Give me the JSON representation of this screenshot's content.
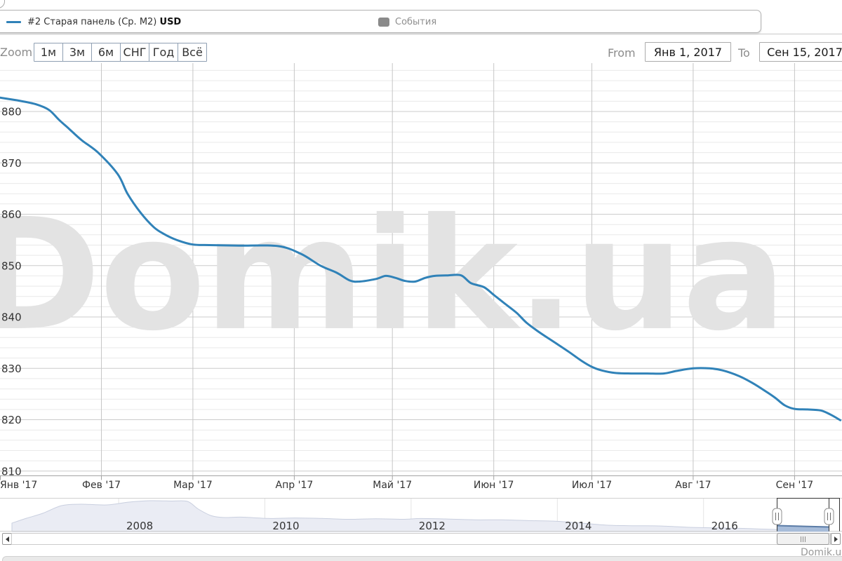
{
  "header": {
    "legend_series_label": "#2 Старая панель (Ср. М2)",
    "legend_series_suffix": "USD",
    "legend_events_label": "События"
  },
  "toolbar": {
    "zoom_label": "Zoom",
    "buttons": [
      "1м",
      "3м",
      "6м",
      "СНГ",
      "Год",
      "Всё"
    ],
    "from_label": "From",
    "from_value": "Янв 1, 2017",
    "to_label": "To",
    "to_value": "Сен 15, 2017"
  },
  "watermark": "Domik.ua",
  "footer_brand": "Domik.ua",
  "colors": {
    "series_line": "#3082b8",
    "grid_major": "#cccccc",
    "grid_minor": "#e9e9e9",
    "grid_vertical": "#c6c6c6",
    "axis_line": "#a3a3a3",
    "axis_label": "#333333",
    "watermark": "#e3e3e3",
    "nav_area_fill": "#eaecf4",
    "nav_area_stroke": "#c9cfdf",
    "nav_grid": "#e4e4e4",
    "nav_border": "#d0d0d0",
    "nav_selected_fill": "#a7bcd9",
    "nav_selected_stroke": "#5a7ba6",
    "nav_outline": "#333333"
  },
  "chart_data": {
    "type": "line",
    "title": "",
    "x_range_labels": [
      "Янв 1, 2017",
      "Сен 15, 2017"
    ],
    "x_unit": "days since Jan 1, 2017",
    "y_ticks": [
      880,
      870,
      860,
      850,
      840,
      830,
      820,
      810
    ],
    "y_minor_step": 2,
    "ylim": [
      809,
      889
    ],
    "x_axis_labels": [
      {
        "label": "Янв '17",
        "day": 0
      },
      {
        "label": "Фев '17",
        "day": 31
      },
      {
        "label": "Мар '17",
        "day": 59
      },
      {
        "label": "Апр '17",
        "day": 90
      },
      {
        "label": "Май '17",
        "day": 120
      },
      {
        "label": "Июн '17",
        "day": 151
      },
      {
        "label": "Июл '17",
        "day": 181
      },
      {
        "label": "Авг '17",
        "day": 212
      },
      {
        "label": "Сен '17",
        "day": 243
      }
    ],
    "series": [
      {
        "name": "#2 Старая панель (Ср. М2) USD",
        "points": [
          [
            0,
            882.7
          ],
          [
            5,
            882.2
          ],
          [
            11,
            881.4
          ],
          [
            15,
            880.3
          ],
          [
            18,
            878.4
          ],
          [
            21,
            876.7
          ],
          [
            25,
            874.4
          ],
          [
            30,
            872.0
          ],
          [
            36,
            867.8
          ],
          [
            39,
            864.0
          ],
          [
            43,
            860.3
          ],
          [
            47,
            857.5
          ],
          [
            50,
            856.2
          ],
          [
            54,
            855.0
          ],
          [
            59,
            854.1
          ],
          [
            64,
            854.0
          ],
          [
            73,
            853.9
          ],
          [
            85,
            853.8
          ],
          [
            92,
            852.3
          ],
          [
            98,
            850.0
          ],
          [
            103,
            848.6
          ],
          [
            107,
            847.1
          ],
          [
            110,
            846.9
          ],
          [
            115,
            847.4
          ],
          [
            118,
            848.0
          ],
          [
            121,
            847.6
          ],
          [
            124,
            847.0
          ],
          [
            127,
            846.9
          ],
          [
            130,
            847.6
          ],
          [
            133,
            848.0
          ],
          [
            137,
            848.1
          ],
          [
            141,
            848.1
          ],
          [
            144,
            846.6
          ],
          [
            148,
            845.8
          ],
          [
            151,
            844.3
          ],
          [
            154,
            842.8
          ],
          [
            158,
            840.8
          ],
          [
            161,
            838.9
          ],
          [
            165,
            837.0
          ],
          [
            170,
            834.9
          ],
          [
            174,
            833.2
          ],
          [
            178,
            831.4
          ],
          [
            181,
            830.3
          ],
          [
            184,
            829.6
          ],
          [
            188,
            829.1
          ],
          [
            193,
            829.0
          ],
          [
            198,
            829.0
          ],
          [
            203,
            829.0
          ],
          [
            207,
            829.5
          ],
          [
            212,
            830.0
          ],
          [
            217,
            830.0
          ],
          [
            221,
            829.6
          ],
          [
            226,
            828.5
          ],
          [
            230,
            827.2
          ],
          [
            234,
            825.6
          ],
          [
            237,
            824.3
          ],
          [
            240,
            822.8
          ],
          [
            243,
            822.1
          ],
          [
            247,
            822.0
          ],
          [
            251,
            821.8
          ],
          [
            254,
            821.0
          ],
          [
            257,
            819.9
          ]
        ]
      }
    ],
    "navigator": {
      "year_ticks": [
        2008,
        2010,
        2012,
        2014,
        2016
      ],
      "selected_range_years": [
        2017.0,
        2017.71
      ],
      "points": [
        [
          2006.54,
          12
        ],
        [
          2006.74,
          19
        ],
        [
          2006.96,
          26
        ],
        [
          2007.22,
          37
        ],
        [
          2007.48,
          39
        ],
        [
          2007.84,
          38
        ],
        [
          2008.14,
          42
        ],
        [
          2008.43,
          44
        ],
        [
          2008.72,
          43.5
        ],
        [
          2008.94,
          43
        ],
        [
          2009.09,
          32
        ],
        [
          2009.27,
          22.5
        ],
        [
          2009.45,
          20
        ],
        [
          2009.67,
          20.6
        ],
        [
          2010.05,
          18.7
        ],
        [
          2010.41,
          19.4
        ],
        [
          2010.78,
          18.7
        ],
        [
          2011.14,
          17.5
        ],
        [
          2011.52,
          18.3
        ],
        [
          2011.88,
          17.5
        ],
        [
          2012.13,
          18.6
        ],
        [
          2012.5,
          17.9
        ],
        [
          2012.87,
          16.7
        ],
        [
          2013.24,
          16.7
        ],
        [
          2013.6,
          15.6
        ],
        [
          2013.97,
          14.8
        ],
        [
          2014.34,
          12
        ],
        [
          2014.7,
          9
        ],
        [
          2015.07,
          8.3
        ],
        [
          2015.43,
          7.9
        ],
        [
          2015.81,
          6
        ],
        [
          2016.17,
          5.2
        ],
        [
          2016.54,
          4.5
        ],
        [
          2016.9,
          3.3
        ],
        [
          2017.31,
          2.5
        ],
        [
          2017.71,
          2
        ]
      ]
    }
  }
}
